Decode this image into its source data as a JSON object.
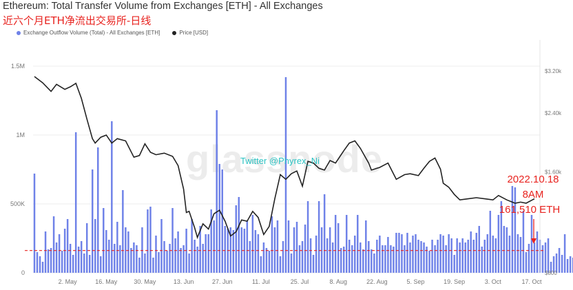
{
  "title": "Ethereum: Total Transfer Volume from Exchanges [ETH] - All Exchanges",
  "subtitle": "近六个月ETH净流出交易所-日线",
  "watermark": "glassnode",
  "twitter_handle": "Twitter @Phyrex_Ni",
  "annotation": {
    "line1": "2022.10.18",
    "line2": "8AM",
    "line3": "161,510 ETH"
  },
  "colors": {
    "bars": "#6f82e8",
    "price_line": "#222222",
    "annotation": "#e8231f",
    "grid": "#eeeeee"
  },
  "chart_data": {
    "type": "bar",
    "title": "Ethereum: Total Transfer Volume from Exchanges [ETH] - All Exchanges",
    "grid": true,
    "legend_placement": "top-left",
    "x_ticks": [
      "2. May",
      "16. May",
      "30. May",
      "13. Jun",
      "27. Jun",
      "11. Jul",
      "25. Jul",
      "8. Aug",
      "22. Aug",
      "5. Sep",
      "19. Sep",
      "3. Oct",
      "17. Oct"
    ],
    "y_left": {
      "ticks": [
        "0",
        "500K",
        "1M",
        "1.5M"
      ],
      "range": [
        0,
        1500000
      ]
    },
    "y_right": {
      "ticks": [
        "$800",
        "$1.60k",
        "$2.40k",
        "$3.20k"
      ],
      "range": [
        800,
        3200
      ],
      "scale": "log"
    },
    "reference_line": {
      "value": 161510,
      "style": "dashed",
      "color": "#e8231f"
    },
    "series": [
      {
        "name": "Exchange Outflow Volume (Total) - All Exchanges [ETH]",
        "type": "bar",
        "dates_start": "2022-04-20",
        "dates_end": "2022-10-18",
        "values": [
          720000,
          150000,
          120000,
          80000,
          300000,
          170000,
          180000,
          410000,
          220000,
          280000,
          160000,
          320000,
          390000,
          210000,
          130000,
          1020000,
          190000,
          230000,
          140000,
          360000,
          130000,
          750000,
          390000,
          910000,
          120000,
          470000,
          310000,
          240000,
          1100000,
          210000,
          370000,
          200000,
          600000,
          330000,
          300000,
          180000,
          220000,
          200000,
          110000,
          330000,
          140000,
          460000,
          480000,
          110000,
          270000,
          150000,
          390000,
          230000,
          160000,
          210000,
          470000,
          250000,
          300000,
          180000,
          200000,
          320000,
          140000,
          390000,
          240000,
          190000,
          340000,
          210000,
          280000,
          280000,
          460000,
          380000,
          1180000,
          790000,
          750000,
          340000,
          320000,
          330000,
          310000,
          490000,
          550000,
          330000,
          320000,
          380000,
          230000,
          420000,
          310000,
          280000,
          120000,
          220000,
          180000,
          160000,
          410000,
          330000,
          380000,
          120000,
          230000,
          1420000,
          380000,
          140000,
          330000,
          370000,
          200000,
          230000,
          350000,
          520000,
          250000,
          130000,
          270000,
          520000,
          330000,
          570000,
          250000,
          330000,
          220000,
          420000,
          360000,
          180000,
          190000,
          420000,
          240000,
          200000,
          270000,
          420000,
          220000,
          170000,
          380000,
          230000,
          170000,
          140000,
          240000,
          270000,
          200000,
          200000,
          260000,
          200000,
          190000,
          290000,
          290000,
          280000,
          200000,
          290000,
          220000,
          270000,
          280000,
          240000,
          230000,
          220000,
          190000,
          160000,
          240000,
          200000,
          240000,
          280000,
          270000,
          200000,
          280000,
          250000,
          130000,
          250000,
          220000,
          250000,
          220000,
          240000,
          300000,
          240000,
          290000,
          340000,
          190000,
          240000,
          280000,
          450000,
          270000,
          250000,
          420000,
          520000,
          340000,
          330000,
          270000,
          630000,
          620000,
          280000,
          260000,
          450000,
          150000,
          210000,
          420000,
          220000,
          300000,
          240000,
          200000,
          220000,
          250000,
          80000,
          120000,
          140000,
          180000,
          130000,
          280000,
          100000,
          120000,
          110000,
          180000,
          240000,
          260000,
          120000,
          200000,
          80000,
          130000,
          75000,
          161510
        ]
      },
      {
        "name": "Price [USD]",
        "type": "line",
        "points": [
          [
            "2022-04-20",
            3080
          ],
          [
            "2022-04-23",
            2950
          ],
          [
            "2022-04-26",
            2780
          ],
          [
            "2022-04-28",
            2920
          ],
          [
            "2022-05-01",
            2820
          ],
          [
            "2022-05-03",
            2870
          ],
          [
            "2022-05-05",
            2940
          ],
          [
            "2022-05-07",
            2650
          ],
          [
            "2022-05-09",
            2300
          ],
          [
            "2022-05-11",
            2010
          ],
          [
            "2022-05-12",
            1950
          ],
          [
            "2022-05-14",
            2030
          ],
          [
            "2022-05-16",
            2060
          ],
          [
            "2022-05-18",
            1950
          ],
          [
            "2022-05-20",
            2010
          ],
          [
            "2022-05-23",
            1980
          ],
          [
            "2022-05-26",
            1770
          ],
          [
            "2022-05-28",
            1790
          ],
          [
            "2022-05-30",
            1940
          ],
          [
            "2022-06-01",
            1830
          ],
          [
            "2022-06-03",
            1800
          ],
          [
            "2022-06-06",
            1820
          ],
          [
            "2022-06-09",
            1780
          ],
          [
            "2022-06-11",
            1670
          ],
          [
            "2022-06-13",
            1420
          ],
          [
            "2022-06-14",
            1210
          ],
          [
            "2022-06-15",
            1220
          ],
          [
            "2022-06-17",
            1090
          ],
          [
            "2022-06-18",
            1020
          ],
          [
            "2022-06-19",
            1070
          ],
          [
            "2022-06-20",
            1120
          ],
          [
            "2022-06-22",
            1080
          ],
          [
            "2022-06-24",
            1200
          ],
          [
            "2022-06-26",
            1230
          ],
          [
            "2022-06-28",
            1140
          ],
          [
            "2022-06-30",
            1030
          ],
          [
            "2022-07-02",
            1060
          ],
          [
            "2022-07-04",
            1150
          ],
          [
            "2022-07-06",
            1140
          ],
          [
            "2022-07-08",
            1220
          ],
          [
            "2022-07-10",
            1170
          ],
          [
            "2022-07-12",
            1040
          ],
          [
            "2022-07-14",
            1100
          ],
          [
            "2022-07-16",
            1330
          ],
          [
            "2022-07-18",
            1570
          ],
          [
            "2022-07-20",
            1520
          ],
          [
            "2022-07-22",
            1580
          ],
          [
            "2022-07-24",
            1610
          ],
          [
            "2022-07-26",
            1450
          ],
          [
            "2022-07-28",
            1720
          ],
          [
            "2022-07-30",
            1700
          ],
          [
            "2022-08-01",
            1640
          ],
          [
            "2022-08-03",
            1620
          ],
          [
            "2022-08-05",
            1730
          ],
          [
            "2022-08-07",
            1700
          ],
          [
            "2022-08-10",
            1850
          ],
          [
            "2022-08-12",
            1950
          ],
          [
            "2022-08-14",
            1980
          ],
          [
            "2022-08-16",
            1880
          ],
          [
            "2022-08-19",
            1700
          ],
          [
            "2022-08-20",
            1620
          ],
          [
            "2022-08-23",
            1650
          ],
          [
            "2022-08-26",
            1700
          ],
          [
            "2022-08-29",
            1520
          ],
          [
            "2022-09-01",
            1570
          ],
          [
            "2022-09-03",
            1580
          ],
          [
            "2022-09-06",
            1560
          ],
          [
            "2022-09-08",
            1640
          ],
          [
            "2022-09-10",
            1720
          ],
          [
            "2022-09-12",
            1760
          ],
          [
            "2022-09-14",
            1630
          ],
          [
            "2022-09-15",
            1480
          ],
          [
            "2022-09-17",
            1440
          ],
          [
            "2022-09-19",
            1370
          ],
          [
            "2022-09-21",
            1320
          ],
          [
            "2022-09-24",
            1330
          ],
          [
            "2022-09-27",
            1340
          ],
          [
            "2022-09-30",
            1330
          ],
          [
            "2022-10-03",
            1320
          ],
          [
            "2022-10-05",
            1360
          ],
          [
            "2022-10-08",
            1320
          ],
          [
            "2022-10-11",
            1290
          ],
          [
            "2022-10-13",
            1300
          ],
          [
            "2022-10-15",
            1290
          ],
          [
            "2022-10-18",
            1330
          ]
        ]
      }
    ]
  }
}
